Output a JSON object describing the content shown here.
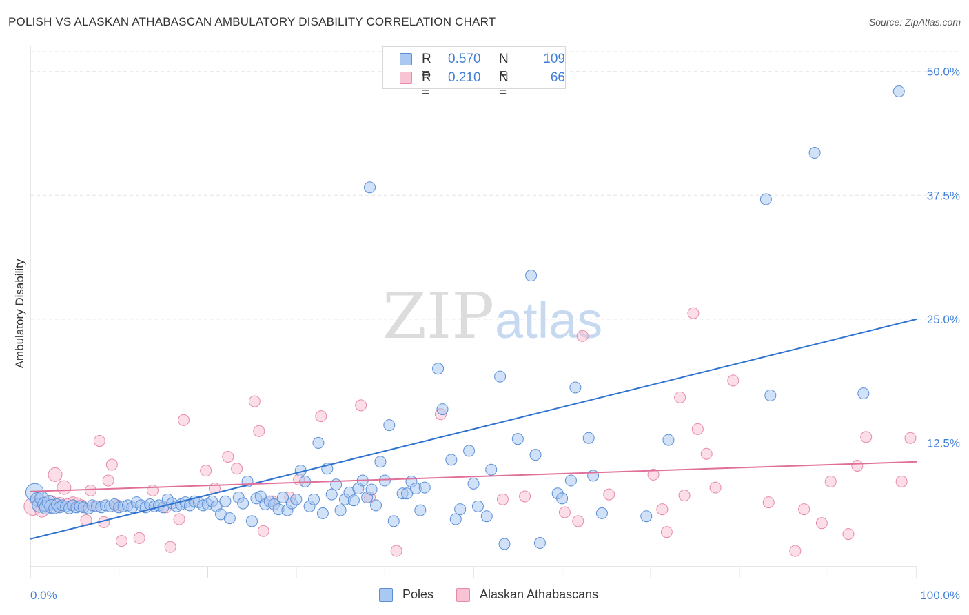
{
  "title": "POLISH VS ALASKAN ATHABASCAN AMBULATORY DISABILITY CORRELATION CHART",
  "source": "Source: ZipAtlas.com",
  "watermark": {
    "zip": "ZIP",
    "atlas": "atlas"
  },
  "legend": {
    "r_label": "R =",
    "n_label": "N =",
    "rows": [
      {
        "r": "0.570",
        "n": "109"
      },
      {
        "r": "0.210",
        "n": "66"
      }
    ]
  },
  "colors": {
    "poles_fill": "#a9c8f2",
    "poles_stroke": "#5b8fd6",
    "poles_line": "#2e73cf",
    "alaskan_fill": "#f8c3d3",
    "alaskan_stroke": "#e889a8",
    "alaskan_line": "#e0709a",
    "axis_label": "#3f7fd8"
  },
  "chart_data": {
    "type": "scatter",
    "title": "POLISH VS ALASKAN ATHABASCAN AMBULATORY DISABILITY CORRELATION CHART",
    "xlabel": "",
    "ylabel": "Ambulatory Disability",
    "xlim": [
      0,
      100
    ],
    "ylim": [
      0,
      52
    ],
    "x_tick_labels": [
      "0.0%",
      "100.0%"
    ],
    "y_ticks": [
      12.5,
      25.0,
      37.5,
      50.0
    ],
    "y_tick_labels": [
      "12.5%",
      "25.0%",
      "37.5%",
      "50.0%"
    ],
    "grid": true,
    "legend_position": "bottom-center",
    "series": [
      {
        "name": "Poles",
        "trendline": {
          "x": [
            0,
            100
          ],
          "y": [
            2.8,
            25.0
          ]
        },
        "points": [
          [
            0.5,
            7.5
          ],
          [
            0.8,
            6.8
          ],
          [
            1.0,
            6.2
          ],
          [
            1.3,
            6.9
          ],
          [
            1.6,
            6.3
          ],
          [
            1.8,
            6.0
          ],
          [
            2.1,
            6.5
          ],
          [
            2.4,
            6.1
          ],
          [
            2.7,
            5.9
          ],
          [
            3.0,
            6.3
          ],
          [
            3.3,
            6.0
          ],
          [
            3.6,
            6.2
          ],
          [
            4.0,
            6.1
          ],
          [
            4.4,
            5.9
          ],
          [
            4.8,
            6.2
          ],
          [
            5.2,
            6.0
          ],
          [
            5.6,
            6.1
          ],
          [
            6.0,
            6.0
          ],
          [
            6.6,
            5.9
          ],
          [
            7.0,
            6.2
          ],
          [
            7.5,
            6.1
          ],
          [
            8.0,
            6.0
          ],
          [
            8.5,
            6.2
          ],
          [
            9.0,
            6.1
          ],
          [
            9.5,
            6.3
          ],
          [
            10.0,
            6.0
          ],
          [
            10.5,
            6.1
          ],
          [
            11.0,
            6.2
          ],
          [
            11.5,
            6.0
          ],
          [
            12.0,
            6.5
          ],
          [
            12.5,
            6.2
          ],
          [
            13.0,
            6.0
          ],
          [
            13.5,
            6.3
          ],
          [
            14.0,
            6.1
          ],
          [
            14.5,
            6.2
          ],
          [
            15.0,
            6.0
          ],
          [
            15.5,
            6.8
          ],
          [
            16.0,
            6.4
          ],
          [
            16.5,
            6.1
          ],
          [
            17.0,
            6.3
          ],
          [
            17.5,
            6.5
          ],
          [
            18.0,
            6.2
          ],
          [
            18.5,
            6.6
          ],
          [
            19.0,
            6.5
          ],
          [
            19.5,
            6.2
          ],
          [
            20.0,
            6.3
          ],
          [
            20.5,
            6.6
          ],
          [
            21.0,
            6.1
          ],
          [
            21.5,
            5.3
          ],
          [
            22.0,
            6.6
          ],
          [
            22.5,
            4.9
          ],
          [
            23.5,
            7.0
          ],
          [
            24.0,
            6.4
          ],
          [
            24.5,
            8.6
          ],
          [
            25.0,
            4.6
          ],
          [
            25.5,
            6.9
          ],
          [
            26.0,
            7.1
          ],
          [
            26.5,
            6.3
          ],
          [
            27.0,
            6.6
          ],
          [
            27.5,
            6.3
          ],
          [
            28.0,
            5.8
          ],
          [
            28.5,
            7.0
          ],
          [
            29.0,
            5.7
          ],
          [
            29.5,
            6.4
          ],
          [
            30.0,
            6.8
          ],
          [
            30.5,
            9.7
          ],
          [
            31.0,
            8.6
          ],
          [
            31.5,
            6.1
          ],
          [
            32.0,
            6.8
          ],
          [
            32.5,
            12.5
          ],
          [
            33.0,
            5.4
          ],
          [
            33.5,
            9.9
          ],
          [
            34.0,
            7.3
          ],
          [
            34.5,
            8.3
          ],
          [
            35.0,
            5.7
          ],
          [
            35.5,
            6.8
          ],
          [
            36.0,
            7.5
          ],
          [
            36.5,
            6.7
          ],
          [
            37.0,
            7.9
          ],
          [
            37.5,
            8.7
          ],
          [
            38.0,
            7.0
          ],
          [
            38.5,
            7.8
          ],
          [
            39.0,
            6.2
          ],
          [
            39.5,
            10.6
          ],
          [
            40.0,
            8.7
          ],
          [
            40.5,
            14.3
          ],
          [
            41.0,
            4.6
          ],
          [
            42.0,
            7.4
          ],
          [
            42.5,
            7.4
          ],
          [
            43.0,
            8.6
          ],
          [
            43.5,
            7.9
          ],
          [
            44.0,
            5.7
          ],
          [
            44.5,
            8.0
          ],
          [
            46.0,
            20.0
          ],
          [
            46.5,
            15.9
          ],
          [
            47.5,
            10.8
          ],
          [
            48.0,
            4.8
          ],
          [
            48.5,
            5.8
          ],
          [
            49.5,
            11.7
          ],
          [
            50.0,
            8.4
          ],
          [
            50.5,
            6.1
          ],
          [
            51.5,
            5.1
          ],
          [
            52.0,
            9.8
          ],
          [
            53.0,
            19.2
          ],
          [
            53.5,
            2.3
          ],
          [
            55.0,
            12.9
          ],
          [
            56.5,
            29.4
          ],
          [
            57.0,
            11.3
          ],
          [
            57.5,
            2.4
          ],
          [
            59.5,
            7.4
          ],
          [
            60.0,
            6.9
          ],
          [
            61.0,
            8.7
          ],
          [
            61.5,
            18.1
          ],
          [
            63.0,
            13.0
          ],
          [
            63.5,
            9.2
          ],
          [
            64.5,
            5.4
          ],
          [
            69.5,
            5.1
          ],
          [
            72.0,
            12.8
          ],
          [
            83.0,
            37.1
          ],
          [
            83.5,
            17.3
          ],
          [
            88.5,
            41.8
          ],
          [
            94.0,
            17.5
          ],
          [
            98.0,
            48.0
          ],
          [
            38.3,
            38.3
          ]
        ]
      },
      {
        "name": "Alaskan Athabascans",
        "trendline": {
          "x": [
            0,
            100
          ],
          "y": [
            7.6,
            10.6
          ]
        },
        "points": [
          [
            0.3,
            6.1
          ],
          [
            0.8,
            6.8
          ],
          [
            1.3,
            5.7
          ],
          [
            1.8,
            6.2
          ],
          [
            2.3,
            6.5
          ],
          [
            2.8,
            9.3
          ],
          [
            3.3,
            6.3
          ],
          [
            3.8,
            8.0
          ],
          [
            4.2,
            6.3
          ],
          [
            4.8,
            6.5
          ],
          [
            5.3,
            6.4
          ],
          [
            5.8,
            6.2
          ],
          [
            6.3,
            4.7
          ],
          [
            6.8,
            7.7
          ],
          [
            7.3,
            6.1
          ],
          [
            7.8,
            12.7
          ],
          [
            8.3,
            4.5
          ],
          [
            8.8,
            8.7
          ],
          [
            9.2,
            10.3
          ],
          [
            9.8,
            6.2
          ],
          [
            10.3,
            2.6
          ],
          [
            12.3,
            2.9
          ],
          [
            13.8,
            7.7
          ],
          [
            15.3,
            6.0
          ],
          [
            15.8,
            2.0
          ],
          [
            16.8,
            4.8
          ],
          [
            17.3,
            14.8
          ],
          [
            19.8,
            9.7
          ],
          [
            20.8,
            7.9
          ],
          [
            22.3,
            11.1
          ],
          [
            23.3,
            9.9
          ],
          [
            25.3,
            16.7
          ],
          [
            25.8,
            13.7
          ],
          [
            26.3,
            3.6
          ],
          [
            27.3,
            6.6
          ],
          [
            29.3,
            7.0
          ],
          [
            30.3,
            8.8
          ],
          [
            32.8,
            15.2
          ],
          [
            37.3,
            16.3
          ],
          [
            38.3,
            7.0
          ],
          [
            41.3,
            1.6
          ],
          [
            46.3,
            15.4
          ],
          [
            53.3,
            6.8
          ],
          [
            55.8,
            7.1
          ],
          [
            60.3,
            5.5
          ],
          [
            61.8,
            4.6
          ],
          [
            62.3,
            23.3
          ],
          [
            65.3,
            7.3
          ],
          [
            70.3,
            9.3
          ],
          [
            71.3,
            5.8
          ],
          [
            71.8,
            3.5
          ],
          [
            73.3,
            17.1
          ],
          [
            73.8,
            7.2
          ],
          [
            74.8,
            25.6
          ],
          [
            75.3,
            13.9
          ],
          [
            76.3,
            11.4
          ],
          [
            77.3,
            8.0
          ],
          [
            79.3,
            18.8
          ],
          [
            83.3,
            6.5
          ],
          [
            86.3,
            1.6
          ],
          [
            87.3,
            5.8
          ],
          [
            89.3,
            4.4
          ],
          [
            90.3,
            8.6
          ],
          [
            92.3,
            3.3
          ],
          [
            93.3,
            10.2
          ],
          [
            94.3,
            13.1
          ],
          [
            98.3,
            8.6
          ],
          [
            99.3,
            13.0
          ]
        ]
      }
    ]
  }
}
